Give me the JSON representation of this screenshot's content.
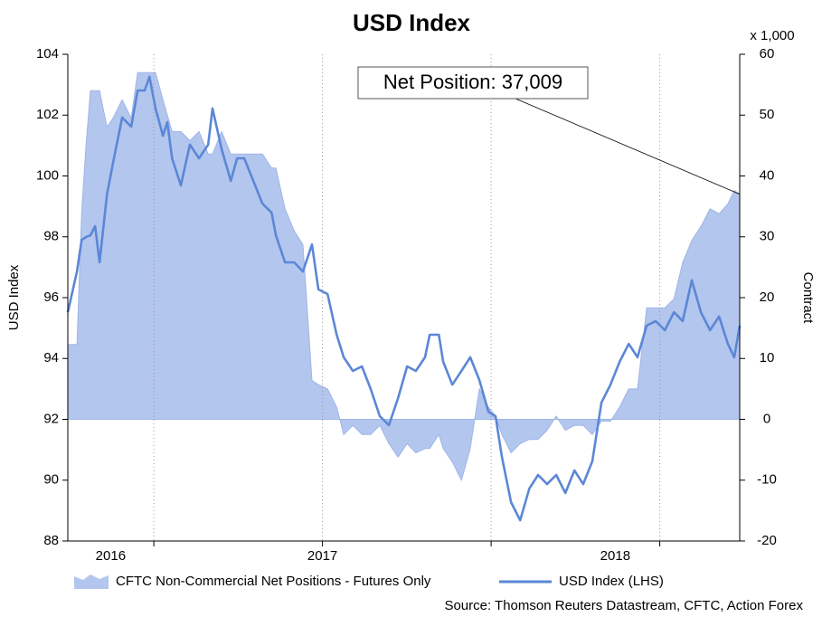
{
  "chart_data": {
    "type": "combo",
    "title": "USD Index",
    "y_label": "USD Index",
    "y2_label": "Contract",
    "y2_unit_label": "x 1,000",
    "annotation": "Net Position: 37,009",
    "source": "Source: Thomson Reuters Datastream, CFTC, Action Forex",
    "xlim": [
      2016.745,
      2018.737
    ],
    "xticks": [
      {
        "value": 2016.872,
        "label": "2016"
      },
      {
        "value": 2017.5,
        "label": "2017"
      },
      {
        "value": 2018.368,
        "label": "2018"
      }
    ],
    "xgrid": [
      2017,
      2017.5,
      2018,
      2018.5
    ],
    "ylim": [
      88,
      104
    ],
    "yticks": [
      88,
      90,
      92,
      94,
      96,
      98,
      100,
      102,
      104
    ],
    "y2lim": [
      -20,
      60
    ],
    "y2ticks": [
      -20,
      -10,
      0,
      10,
      20,
      30,
      40,
      50,
      60
    ],
    "grid": true,
    "x": [
      2016.745,
      2016.772,
      2016.786,
      2016.799,
      2016.812,
      2016.826,
      2016.839,
      2016.861,
      2016.879,
      2016.906,
      2016.933,
      2016.952,
      2016.973,
      2016.987,
      2017.005,
      2017.027,
      2017.04,
      2017.054,
      2017.08,
      2017.107,
      2017.134,
      2017.161,
      2017.174,
      2017.201,
      2017.228,
      2017.247,
      2017.268,
      2017.295,
      2017.322,
      2017.349,
      2017.362,
      2017.389,
      2017.416,
      2017.442,
      2017.469,
      2017.488,
      2017.515,
      2017.542,
      2017.563,
      2017.59,
      2017.617,
      2017.643,
      2017.67,
      2017.697,
      2017.724,
      2017.751,
      2017.777,
      2017.804,
      2017.818,
      2017.845,
      2017.858,
      2017.885,
      2017.912,
      2017.938,
      2017.965,
      2017.992,
      2018.013,
      2018.032,
      2018.059,
      2018.086,
      2018.113,
      2018.139,
      2018.166,
      2018.193,
      2018.22,
      2018.247,
      2018.273,
      2018.3,
      2018.327,
      2018.354,
      2018.381,
      2018.408,
      2018.434,
      2018.461,
      2018.488,
      2018.515,
      2018.542,
      2018.568,
      2018.595,
      2018.622,
      2018.649,
      2018.676,
      2018.702,
      2018.721,
      2018.737
    ],
    "series": [
      {
        "name": "CFTC Non-Commercial Net Positions - Futures Only",
        "type": "area",
        "axis": "y2",
        "color": "#b3c6ee",
        "values": [
          12.3,
          12.3,
          34,
          45,
          54,
          54,
          54,
          48,
          49.5,
          52.5,
          49.5,
          57,
          57,
          57,
          57,
          52.5,
          50,
          47.3,
          47.3,
          45.8,
          47.3,
          43.6,
          43.6,
          47.3,
          43.6,
          43.6,
          43.6,
          43.6,
          43.6,
          41.3,
          41.3,
          34.6,
          31,
          28.7,
          6.4,
          5.7,
          5,
          2,
          -2.5,
          -1,
          -2.5,
          -2.5,
          -1,
          -4,
          -6.2,
          -4,
          -5.5,
          -4.8,
          -4.8,
          -2.5,
          -4.8,
          -7,
          -10,
          -4.8,
          5,
          2,
          0.5,
          -2.5,
          -5.5,
          -4,
          -3.3,
          -3.3,
          -1.8,
          0.5,
          -1.8,
          -1,
          -1,
          -2.5,
          -0.3,
          -0.3,
          2,
          5,
          5,
          18.3,
          18.3,
          18.3,
          19.8,
          25.8,
          29.4,
          31.7,
          34.6,
          33.8,
          35.4,
          37.6,
          37.009
        ]
      },
      {
        "name": "USD Index (LHS)",
        "type": "line",
        "color": "#5b87d6",
        "values": [
          95.52,
          96.86,
          97.9,
          97.99,
          98.05,
          98.35,
          97.16,
          99.39,
          100.43,
          101.92,
          101.62,
          102.81,
          102.81,
          103.26,
          102.22,
          101.32,
          101.77,
          100.58,
          99.69,
          101.03,
          100.58,
          101.03,
          102.22,
          100.88,
          99.84,
          100.58,
          100.58,
          99.84,
          99.09,
          98.8,
          98.05,
          97.16,
          97.16,
          96.86,
          97.75,
          96.27,
          96.12,
          94.78,
          94.04,
          93.59,
          93.74,
          93.0,
          92.1,
          91.81,
          92.7,
          93.74,
          93.59,
          94.04,
          94.78,
          94.78,
          93.89,
          93.14,
          93.59,
          94.04,
          93.29,
          92.25,
          92.1,
          90.77,
          89.28,
          88.68,
          89.72,
          90.17,
          89.87,
          90.17,
          89.58,
          90.32,
          89.87,
          90.62,
          92.55,
          93.14,
          93.89,
          94.48,
          94.04,
          95.08,
          95.23,
          94.93,
          95.52,
          95.23,
          96.57,
          95.52,
          94.93,
          95.38,
          94.48,
          94.04,
          95.08
        ]
      }
    ]
  }
}
